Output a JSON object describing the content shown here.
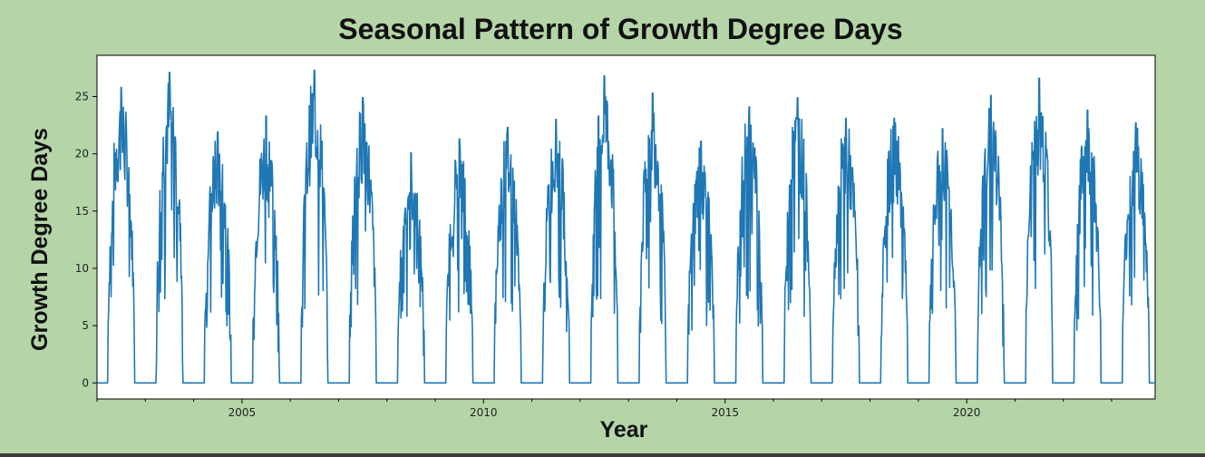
{
  "chart_data": {
    "type": "line",
    "title": "Seasonal Pattern of Growth Degree Days",
    "xlabel": "Year",
    "ylabel": "Growth Degree Days",
    "xlim": [
      2002.0,
      2023.9
    ],
    "ylim": [
      -1.4,
      28.6
    ],
    "x_ticks": [
      2005,
      2010,
      2015,
      2020
    ],
    "y_ticks": [
      0,
      5,
      10,
      15,
      20,
      25
    ],
    "grid": false,
    "legend": "none",
    "colors": {
      "line": "#1f77b4",
      "background": "#b5d5a9",
      "plot_background": "#ffffff"
    },
    "series": [
      {
        "peaks": [
          {
            "year": 2002,
            "max": 25.8
          },
          {
            "year": 2003,
            "max": 27.1
          },
          {
            "year": 2004,
            "max": 21.9
          },
          {
            "year": 2005,
            "max": 23.3
          },
          {
            "year": 2006,
            "max": 27.3
          },
          {
            "year": 2007,
            "max": 24.9
          },
          {
            "year": 2008,
            "max": 20.1
          },
          {
            "year": 2009,
            "max": 21.3
          },
          {
            "year": 2010,
            "max": 22.3
          },
          {
            "year": 2011,
            "max": 23.0
          },
          {
            "year": 2012,
            "max": 26.8
          },
          {
            "year": 2013,
            "max": 25.3
          },
          {
            "year": 2014,
            "max": 21.1
          },
          {
            "year": 2015,
            "max": 24.1
          },
          {
            "year": 2016,
            "max": 24.9
          },
          {
            "year": 2017,
            "max": 23.1
          },
          {
            "year": 2018,
            "max": 23.1
          },
          {
            "year": 2019,
            "max": 22.2
          },
          {
            "year": 2020,
            "max": 25.1
          },
          {
            "year": 2021,
            "max": 26.6
          },
          {
            "year": 2022,
            "max": 23.8
          },
          {
            "year": 2023,
            "max": 22.7
          }
        ]
      }
    ]
  }
}
